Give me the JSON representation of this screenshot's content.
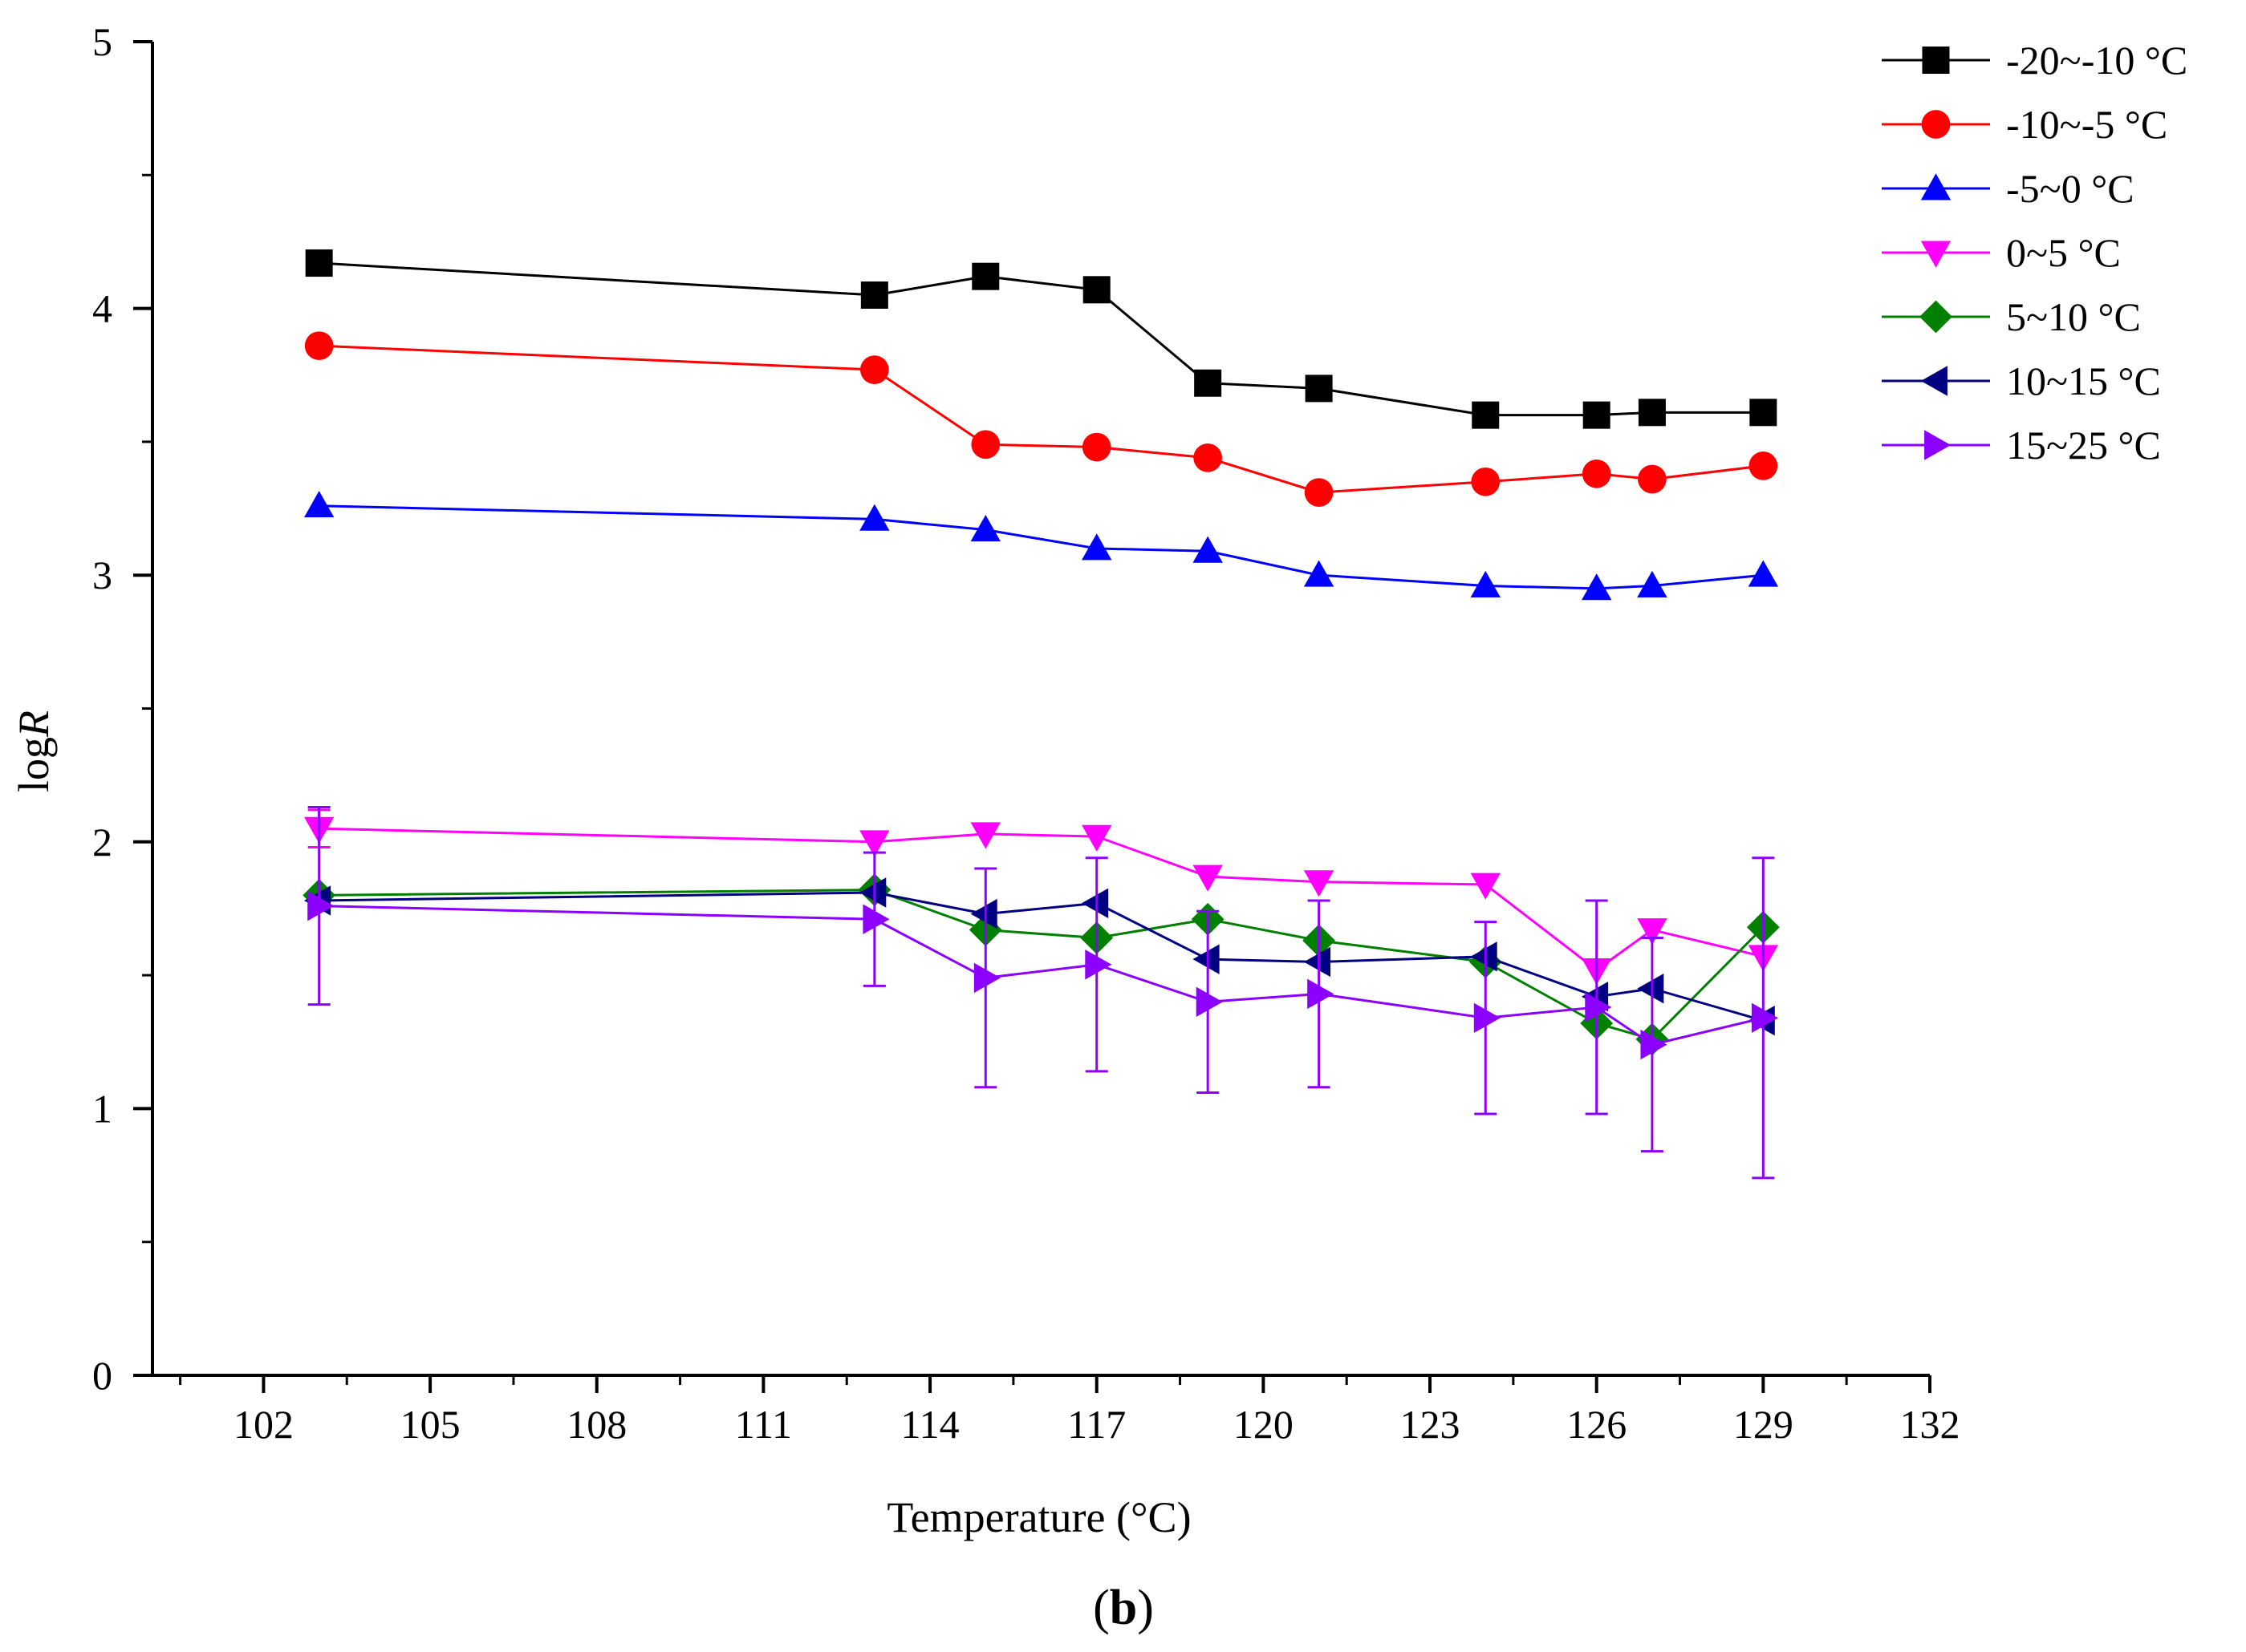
{
  "chart_data": {
    "type": "line",
    "title": "",
    "panel_label_open": "(",
    "panel_label_letter": "b",
    "panel_label_close": ")",
    "xlabel": "Temperature (°C)",
    "ylabel_prefix": "log",
    "ylabel_italic": "R",
    "xlim": [
      100,
      132
    ],
    "ylim": [
      0,
      5
    ],
    "xticks": [
      102,
      105,
      108,
      111,
      114,
      117,
      120,
      123,
      126,
      129,
      132
    ],
    "yticks": [
      0,
      1,
      2,
      3,
      4,
      5
    ],
    "legend_position": "top-right",
    "x": [
      103,
      113,
      115,
      117,
      119,
      121,
      124,
      126,
      127,
      129
    ],
    "series": [
      {
        "name": "-20~-10 °C",
        "color": "#000000",
        "marker": "square",
        "values": [
          4.17,
          4.05,
          4.12,
          4.07,
          3.72,
          3.7,
          3.6,
          3.6,
          3.61,
          3.61
        ]
      },
      {
        "name": "-10~-5 °C",
        "color": "#ff0000",
        "marker": "circle",
        "values": [
          3.86,
          3.77,
          3.49,
          3.48,
          3.44,
          3.31,
          3.35,
          3.38,
          3.36,
          3.41
        ]
      },
      {
        "name": "-5~0 °C",
        "color": "#0000ff",
        "marker": "triangle-up",
        "values": [
          3.26,
          3.21,
          3.17,
          3.1,
          3.09,
          3.0,
          2.96,
          2.95,
          2.96,
          3.0
        ]
      },
      {
        "name": "0~5 °C",
        "color": "#ff00ff",
        "marker": "triangle-down",
        "values": [
          2.05,
          2.0,
          2.03,
          2.02,
          1.87,
          1.85,
          1.84,
          1.52,
          1.67,
          1.57
        ],
        "errors": [
          0.07,
          0.0,
          0.0,
          0.0,
          0.0,
          0.0,
          0.0,
          0.0,
          0.0,
          0.0
        ]
      },
      {
        "name": "5~10 °C",
        "color": "#008000",
        "marker": "diamond",
        "values": [
          1.8,
          1.82,
          1.67,
          1.64,
          1.71,
          1.63,
          1.55,
          1.32,
          1.26,
          1.68
        ]
      },
      {
        "name": "10~15 °C",
        "color": "#000080",
        "marker": "triangle-left",
        "values": [
          1.78,
          1.81,
          1.73,
          1.77,
          1.56,
          1.55,
          1.57,
          1.42,
          1.45,
          1.33
        ]
      },
      {
        "name": "15~25 °C",
        "color": "#8b00ff",
        "marker": "triangle-right",
        "values": [
          1.76,
          1.71,
          1.49,
          1.54,
          1.4,
          1.43,
          1.34,
          1.38,
          1.24,
          1.34
        ],
        "errors": [
          0.37,
          0.25,
          0.41,
          0.4,
          0.34,
          0.35,
          0.36,
          0.4,
          0.4,
          0.6
        ]
      }
    ]
  }
}
